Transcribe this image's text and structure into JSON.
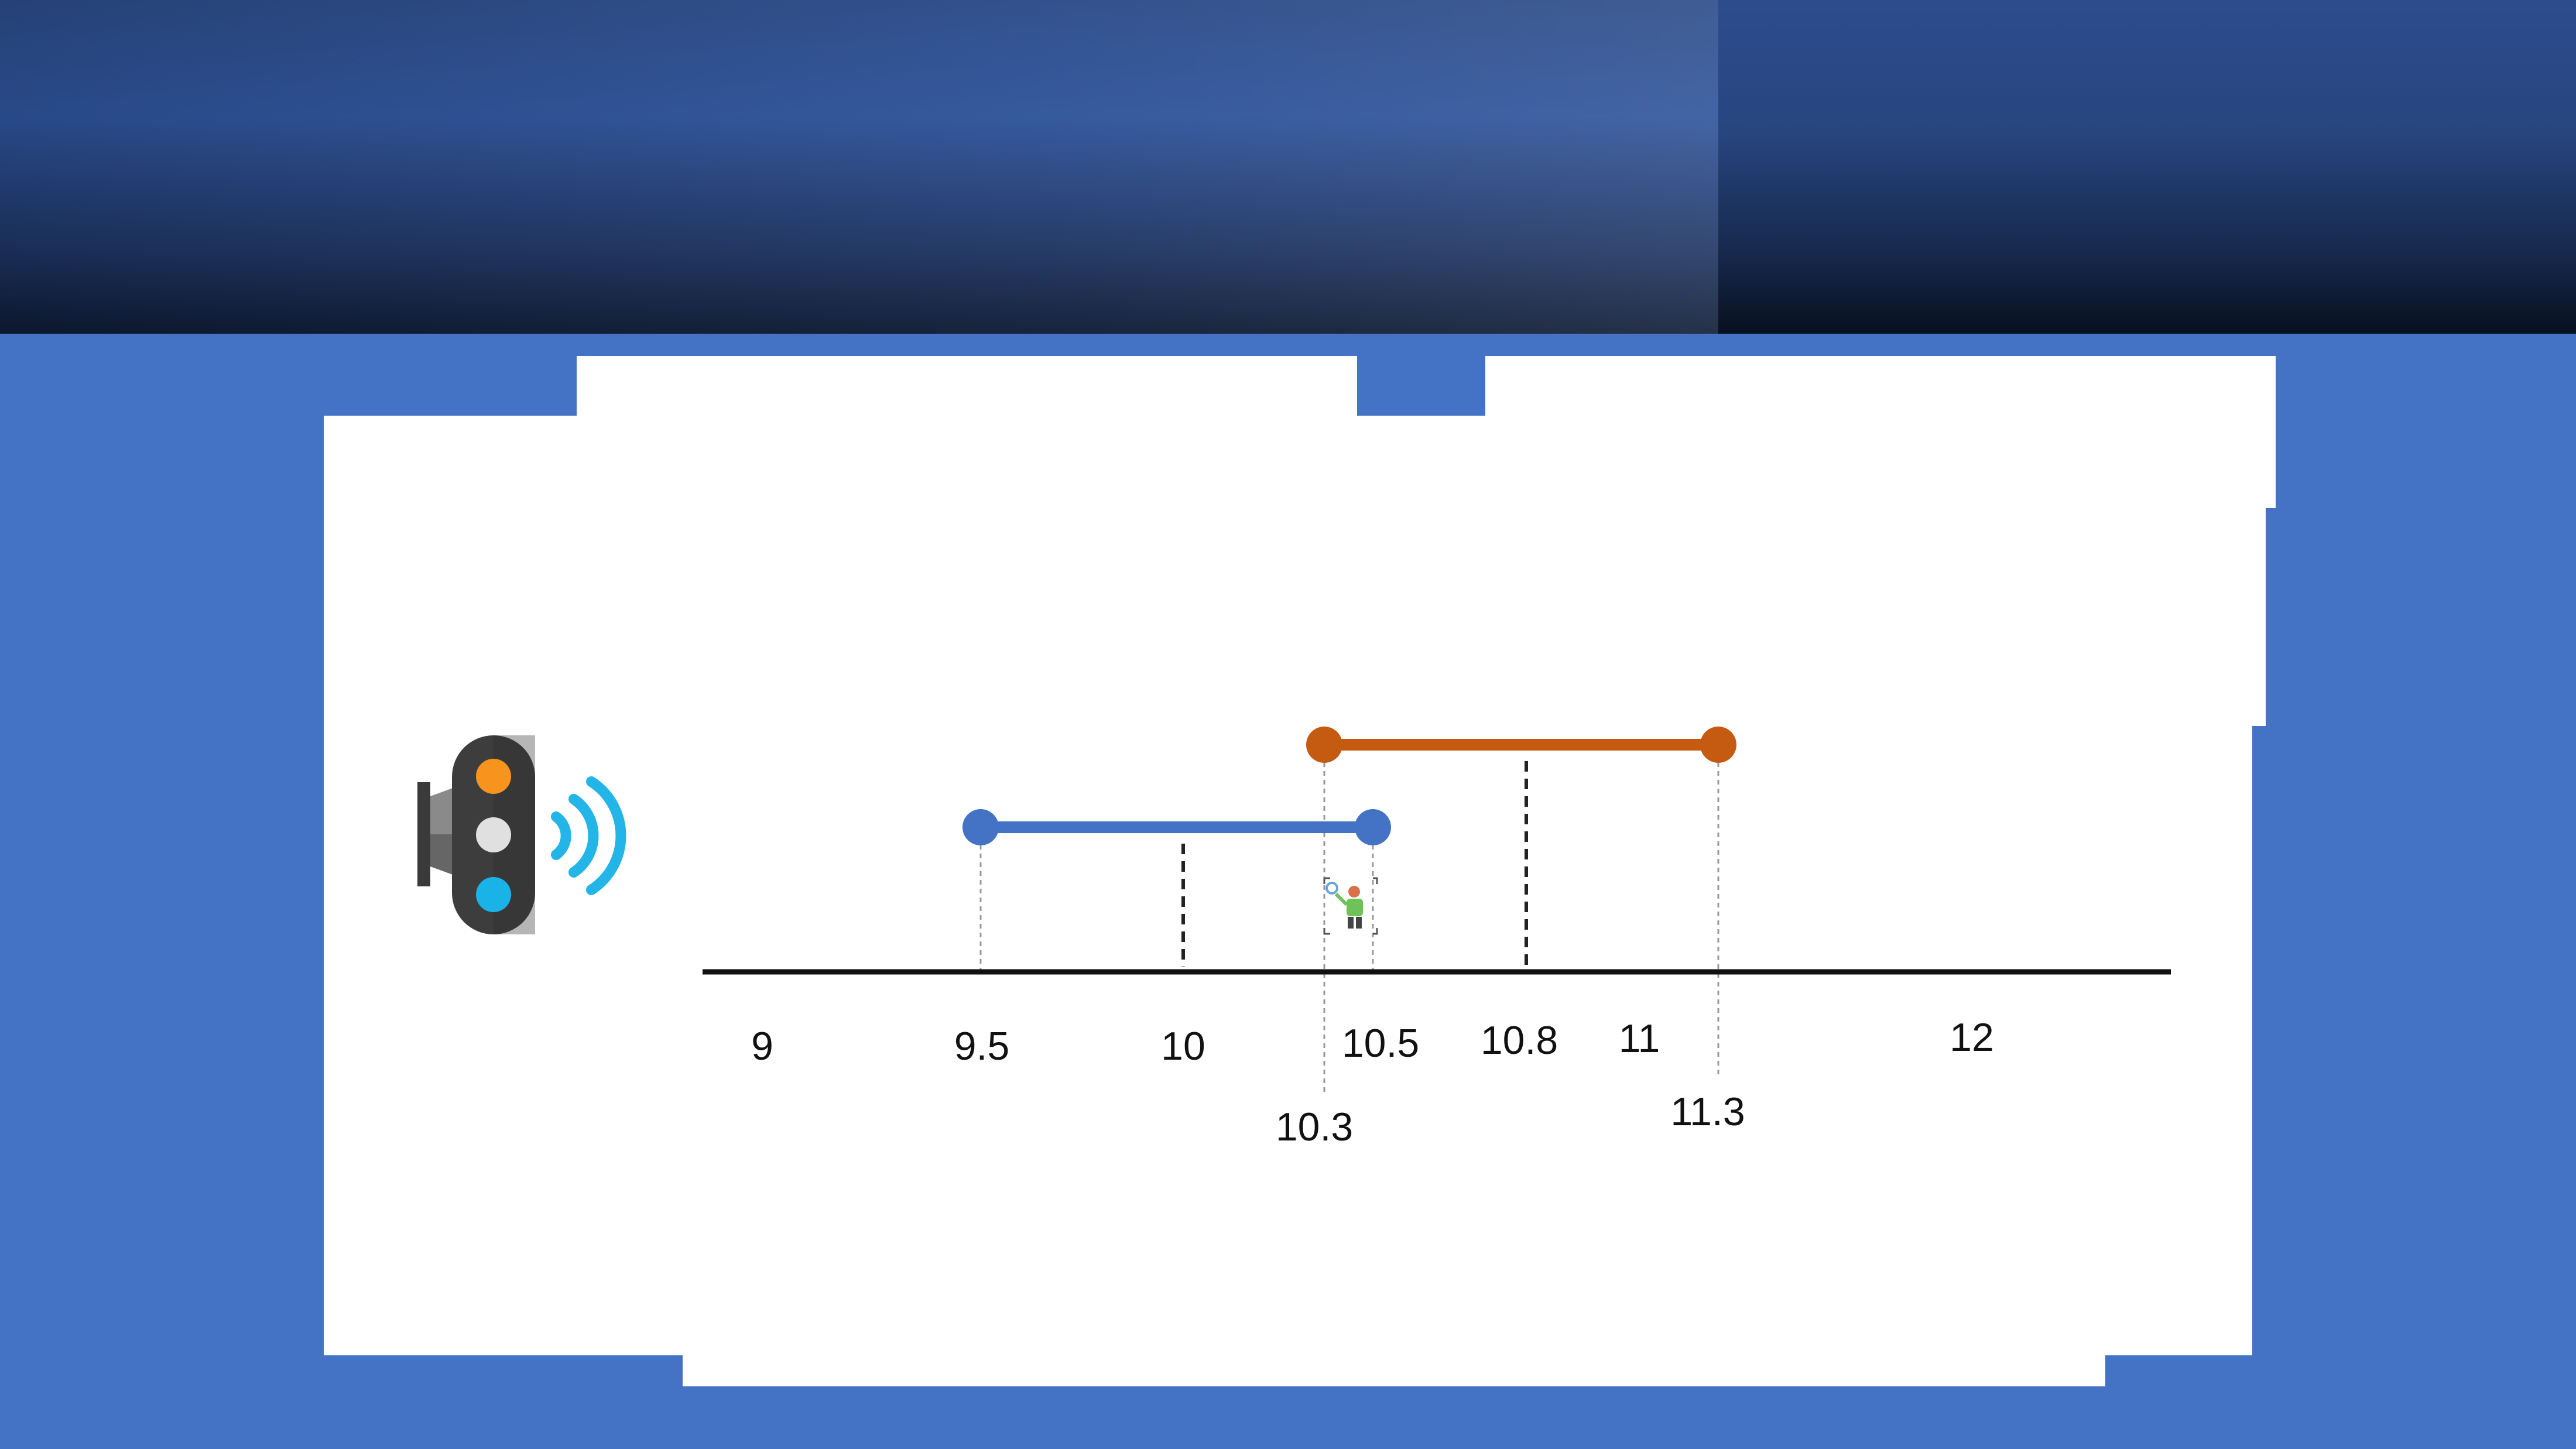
{
  "diagram": {
    "number_line": {
      "tick_labels": [
        "9",
        "9.5",
        "10",
        "10.5",
        "10.8",
        "11",
        "12"
      ],
      "lower_labels": [
        "10.3",
        "11.3"
      ]
    },
    "intervals": [
      {
        "start": 9.5,
        "end": 10.5,
        "midpoint": 10,
        "color": "#4472c4"
      },
      {
        "start": 10.3,
        "end": 11.3,
        "midpoint": 10.8,
        "color": "#c55a11"
      }
    ],
    "icons": [
      "traffic-light-icon",
      "signal-waves-icon",
      "person-icon"
    ]
  },
  "colors": {
    "slide_background": "#4472c4",
    "header_dark": "#0d1a33",
    "blue_interval": "#4472c4",
    "orange_interval": "#c55a11"
  }
}
